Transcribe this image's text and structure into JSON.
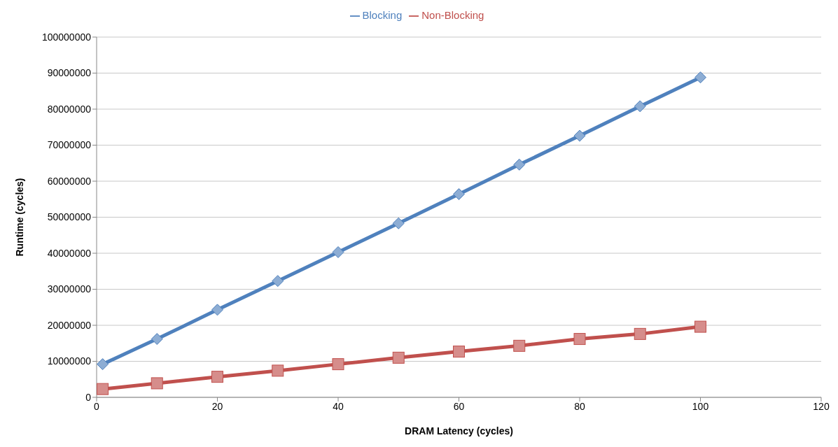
{
  "chart_data": {
    "type": "line",
    "xlabel": "DRAM Latency (cycles)",
    "ylabel": "Runtime (cycles)",
    "x": [
      1,
      10,
      20,
      30,
      40,
      50,
      60,
      70,
      80,
      90,
      100
    ],
    "series": [
      {
        "name": "Blocking",
        "color": "#4f81bd",
        "marker": "diamond",
        "values": [
          9200000,
          16200000,
          24300000,
          32300000,
          40300000,
          48300000,
          56400000,
          64600000,
          72600000,
          80800000,
          88800000
        ]
      },
      {
        "name": "Non-Blocking",
        "color": "#c0504d",
        "marker": "square",
        "values": [
          2300000,
          3900000,
          5700000,
          7400000,
          9200000,
          11000000,
          12700000,
          14300000,
          16200000,
          17600000,
          19600000
        ]
      }
    ],
    "xlim": [
      0,
      120
    ],
    "xticks": [
      0,
      20,
      40,
      60,
      80,
      100,
      120
    ],
    "ylim": [
      0,
      100000000
    ],
    "yticks": [
      0,
      10000000,
      20000000,
      30000000,
      40000000,
      50000000,
      60000000,
      70000000,
      80000000,
      90000000,
      100000000
    ],
    "grid": "y",
    "legend": "top",
    "line_style": "solid"
  }
}
